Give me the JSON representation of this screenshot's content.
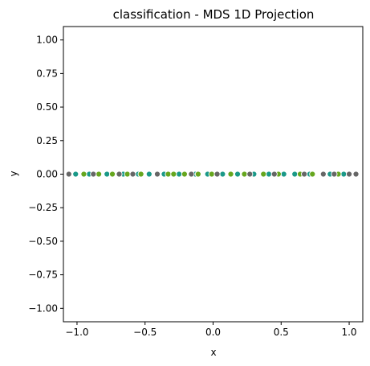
{
  "chart_data": {
    "type": "scatter",
    "title": "classification - MDS 1D Projection",
    "xlabel": "x",
    "ylabel": "y",
    "xlim": [
      -1.1,
      1.1
    ],
    "ylim": [
      -1.1,
      1.1
    ],
    "xticks": [
      -1.0,
      -0.5,
      0.0,
      0.5,
      1.0
    ],
    "xtick_labels": [
      "−1.0",
      "−0.5",
      "0.0",
      "0.5",
      "1.0"
    ],
    "yticks": [
      -1.0,
      -0.75,
      -0.5,
      -0.25,
      0.0,
      0.25,
      0.5,
      0.75,
      1.0
    ],
    "ytick_labels": [
      "−1.00",
      "−0.75",
      "−0.50",
      "−0.25",
      "0.00",
      "0.25",
      "0.50",
      "0.75",
      "1.00"
    ],
    "grid": false,
    "series": [
      {
        "color": "#1a9988",
        "x": [
          -1.01,
          -0.91,
          -0.78,
          -0.66,
          -0.55,
          -0.47,
          -0.36,
          -0.25,
          -0.13,
          -0.04,
          0.07,
          0.18,
          0.3,
          0.41,
          0.52,
          0.6,
          0.71,
          0.86,
          0.96
        ],
        "y": [
          0,
          0,
          0,
          0,
          0,
          0,
          0,
          0,
          0,
          0,
          0,
          0,
          0,
          0,
          0,
          0,
          0,
          0,
          0
        ]
      },
      {
        "color": "#66a61e",
        "x": [
          -0.95,
          -0.84,
          -0.74,
          -0.63,
          -0.53,
          -0.33,
          -0.29,
          -0.21,
          -0.11,
          -0.01,
          0.13,
          0.23,
          0.37,
          0.48,
          0.64,
          0.73,
          0.92
        ],
        "y": [
          0,
          0,
          0,
          0,
          0,
          0,
          0,
          0,
          0,
          0,
          0,
          0,
          0,
          0,
          0,
          0,
          0
        ]
      },
      {
        "color": "#666666",
        "x": [
          -1.06,
          -0.88,
          -0.69,
          -0.59,
          -0.41,
          -0.16,
          0.03,
          0.27,
          0.45,
          0.67,
          0.81,
          0.89,
          1.0,
          1.05
        ],
        "y": [
          0,
          0,
          0,
          0,
          0,
          0,
          0,
          0,
          0,
          0,
          0,
          0,
          0,
          0
        ]
      }
    ]
  }
}
